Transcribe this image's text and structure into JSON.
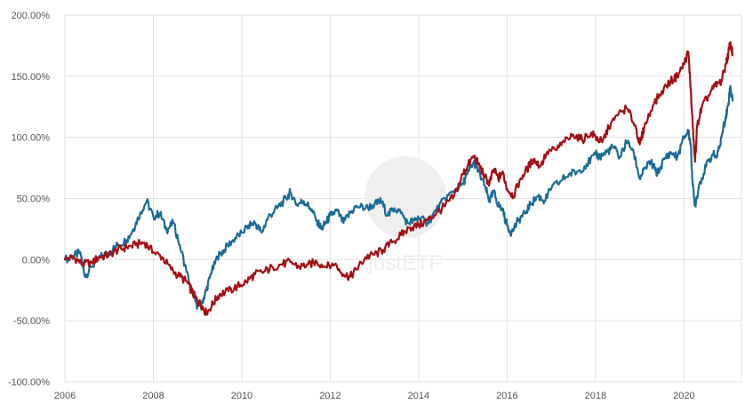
{
  "chart_data": {
    "type": "line",
    "title": "",
    "xlabel": "",
    "ylabel": "",
    "xlim": [
      2006.0,
      2021.3
    ],
    "ylim": [
      -100,
      200
    ],
    "grid": true,
    "x_ticks": [
      2006,
      2008,
      2010,
      2012,
      2014,
      2016,
      2018,
      2020
    ],
    "x_tick_labels": [
      "2006",
      "2008",
      "2010",
      "2012",
      "2014",
      "2016",
      "2018",
      "2020"
    ],
    "y_ticks": [
      200,
      150,
      100,
      50,
      0,
      -50,
      -100
    ],
    "y_tick_labels": [
      "200.00%",
      "150.00%",
      "100.00%",
      "50.00%",
      "0.00%",
      "-50.00%",
      "-100.00%"
    ],
    "watermark": "justETF",
    "series": [
      {
        "color": "#1a6a96",
        "points": [
          [
            2006.0,
            0
          ],
          [
            2006.2,
            3
          ],
          [
            2006.35,
            6
          ],
          [
            2006.45,
            -14
          ],
          [
            2006.6,
            -6
          ],
          [
            2006.8,
            2
          ],
          [
            2007.0,
            6
          ],
          [
            2007.2,
            12
          ],
          [
            2007.4,
            16
          ],
          [
            2007.55,
            25
          ],
          [
            2007.7,
            38
          ],
          [
            2007.85,
            48
          ],
          [
            2008.0,
            35
          ],
          [
            2008.15,
            38
          ],
          [
            2008.3,
            24
          ],
          [
            2008.45,
            30
          ],
          [
            2008.6,
            12
          ],
          [
            2008.75,
            -10
          ],
          [
            2008.9,
            -30
          ],
          [
            2009.0,
            -38
          ],
          [
            2009.1,
            -35
          ],
          [
            2009.2,
            -25
          ],
          [
            2009.3,
            -12
          ],
          [
            2009.45,
            2
          ],
          [
            2009.6,
            8
          ],
          [
            2009.8,
            16
          ],
          [
            2010.0,
            22
          ],
          [
            2010.15,
            28
          ],
          [
            2010.3,
            30
          ],
          [
            2010.45,
            22
          ],
          [
            2010.6,
            35
          ],
          [
            2010.8,
            42
          ],
          [
            2011.0,
            50
          ],
          [
            2011.1,
            55
          ],
          [
            2011.25,
            45
          ],
          [
            2011.4,
            48
          ],
          [
            2011.55,
            42
          ],
          [
            2011.7,
            32
          ],
          [
            2011.8,
            25
          ],
          [
            2011.9,
            30
          ],
          [
            2012.0,
            36
          ],
          [
            2012.15,
            40
          ],
          [
            2012.3,
            30
          ],
          [
            2012.45,
            38
          ],
          [
            2012.6,
            44
          ],
          [
            2012.8,
            42
          ],
          [
            2013.0,
            45
          ],
          [
            2013.15,
            48
          ],
          [
            2013.3,
            36
          ],
          [
            2013.45,
            42
          ],
          [
            2013.6,
            38
          ],
          [
            2013.75,
            30
          ],
          [
            2013.9,
            32
          ],
          [
            2014.0,
            34
          ],
          [
            2014.2,
            30
          ],
          [
            2014.4,
            40
          ],
          [
            2014.6,
            50
          ],
          [
            2014.8,
            56
          ],
          [
            2015.0,
            62
          ],
          [
            2015.1,
            70
          ],
          [
            2015.25,
            80
          ],
          [
            2015.35,
            72
          ],
          [
            2015.5,
            60
          ],
          [
            2015.6,
            48
          ],
          [
            2015.7,
            55
          ],
          [
            2015.8,
            45
          ],
          [
            2015.9,
            40
          ],
          [
            2016.0,
            28
          ],
          [
            2016.1,
            22
          ],
          [
            2016.25,
            32
          ],
          [
            2016.4,
            38
          ],
          [
            2016.55,
            46
          ],
          [
            2016.7,
            52
          ],
          [
            2016.85,
            48
          ],
          [
            2017.0,
            58
          ],
          [
            2017.2,
            64
          ],
          [
            2017.4,
            70
          ],
          [
            2017.6,
            72
          ],
          [
            2017.8,
            78
          ],
          [
            2018.0,
            86
          ],
          [
            2018.1,
            84
          ],
          [
            2018.25,
            88
          ],
          [
            2018.4,
            92
          ],
          [
            2018.55,
            84
          ],
          [
            2018.7,
            96
          ],
          [
            2018.85,
            90
          ],
          [
            2019.0,
            66
          ],
          [
            2019.1,
            74
          ],
          [
            2019.25,
            80
          ],
          [
            2019.4,
            70
          ],
          [
            2019.55,
            82
          ],
          [
            2019.7,
            88
          ],
          [
            2019.85,
            84
          ],
          [
            2020.0,
            100
          ],
          [
            2020.1,
            105
          ],
          [
            2020.15,
            95
          ],
          [
            2020.2,
            60
          ],
          [
            2020.25,
            44
          ],
          [
            2020.35,
            62
          ],
          [
            2020.5,
            76
          ],
          [
            2020.65,
            86
          ],
          [
            2020.75,
            84
          ],
          [
            2020.85,
            100
          ],
          [
            2020.95,
            118
          ],
          [
            2021.0,
            126
          ],
          [
            2021.05,
            142
          ],
          [
            2021.1,
            130
          ]
        ]
      },
      {
        "color": "#a30f14",
        "points": [
          [
            2006.0,
            0
          ],
          [
            2006.2,
            2
          ],
          [
            2006.4,
            -4
          ],
          [
            2006.6,
            -2
          ],
          [
            2006.8,
            2
          ],
          [
            2007.0,
            4
          ],
          [
            2007.2,
            8
          ],
          [
            2007.4,
            10
          ],
          [
            2007.6,
            12
          ],
          [
            2007.8,
            14
          ],
          [
            2008.0,
            6
          ],
          [
            2008.2,
            2
          ],
          [
            2008.4,
            -8
          ],
          [
            2008.6,
            -14
          ],
          [
            2008.75,
            -18
          ],
          [
            2008.9,
            -28
          ],
          [
            2009.0,
            -34
          ],
          [
            2009.1,
            -38
          ],
          [
            2009.2,
            -44
          ],
          [
            2009.35,
            -36
          ],
          [
            2009.5,
            -28
          ],
          [
            2009.7,
            -26
          ],
          [
            2009.9,
            -22
          ],
          [
            2010.1,
            -18
          ],
          [
            2010.3,
            -12
          ],
          [
            2010.5,
            -10
          ],
          [
            2010.7,
            -6
          ],
          [
            2010.9,
            -4
          ],
          [
            2011.1,
            -2
          ],
          [
            2011.3,
            -6
          ],
          [
            2011.5,
            -4
          ],
          [
            2011.7,
            -2
          ],
          [
            2011.9,
            -6
          ],
          [
            2012.1,
            -4
          ],
          [
            2012.3,
            -12
          ],
          [
            2012.45,
            -14
          ],
          [
            2012.6,
            -8
          ],
          [
            2012.8,
            2
          ],
          [
            2013.0,
            4
          ],
          [
            2013.2,
            8
          ],
          [
            2013.4,
            14
          ],
          [
            2013.6,
            20
          ],
          [
            2013.8,
            26
          ],
          [
            2014.0,
            28
          ],
          [
            2014.2,
            32
          ],
          [
            2014.4,
            38
          ],
          [
            2014.6,
            44
          ],
          [
            2014.8,
            52
          ],
          [
            2015.0,
            70
          ],
          [
            2015.1,
            76
          ],
          [
            2015.25,
            85
          ],
          [
            2015.35,
            78
          ],
          [
            2015.5,
            68
          ],
          [
            2015.6,
            62
          ],
          [
            2015.7,
            74
          ],
          [
            2015.8,
            66
          ],
          [
            2015.9,
            72
          ],
          [
            2016.0,
            58
          ],
          [
            2016.15,
            52
          ],
          [
            2016.3,
            66
          ],
          [
            2016.45,
            74
          ],
          [
            2016.6,
            82
          ],
          [
            2016.75,
            76
          ],
          [
            2016.9,
            88
          ],
          [
            2017.1,
            90
          ],
          [
            2017.3,
            96
          ],
          [
            2017.5,
            102
          ],
          [
            2017.7,
            98
          ],
          [
            2017.9,
            104
          ],
          [
            2018.0,
            100
          ],
          [
            2018.15,
            96
          ],
          [
            2018.3,
            108
          ],
          [
            2018.5,
            118
          ],
          [
            2018.7,
            124
          ],
          [
            2018.9,
            110
          ],
          [
            2019.0,
            94
          ],
          [
            2019.1,
            108
          ],
          [
            2019.3,
            126
          ],
          [
            2019.5,
            138
          ],
          [
            2019.7,
            146
          ],
          [
            2019.85,
            150
          ],
          [
            2020.0,
            160
          ],
          [
            2020.1,
            170
          ],
          [
            2020.15,
            140
          ],
          [
            2020.2,
            108
          ],
          [
            2020.25,
            80
          ],
          [
            2020.3,
            110
          ],
          [
            2020.4,
            124
          ],
          [
            2020.55,
            134
          ],
          [
            2020.7,
            142
          ],
          [
            2020.85,
            146
          ],
          [
            2020.95,
            160
          ],
          [
            2021.0,
            168
          ],
          [
            2021.05,
            178
          ],
          [
            2021.1,
            168
          ]
        ]
      }
    ]
  }
}
